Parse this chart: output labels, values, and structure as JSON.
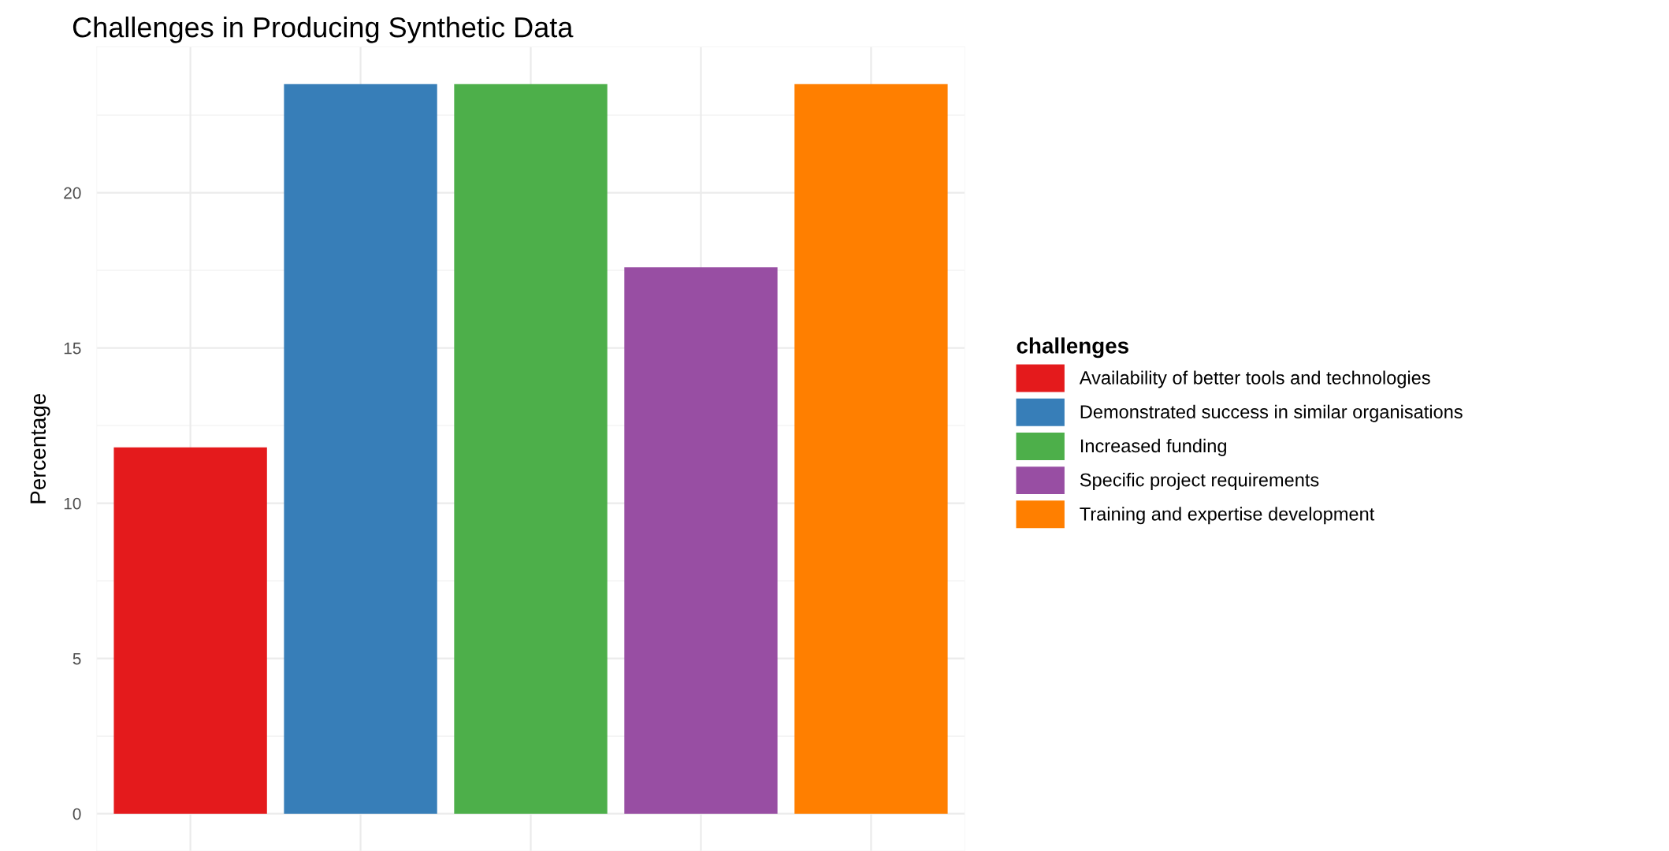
{
  "chart_data": {
    "type": "bar",
    "title": "Challenges in Producing Synthetic Data",
    "ylabel": "Percentage",
    "categories": [
      null,
      null,
      null,
      null,
      null
    ],
    "series": [
      {
        "name": "Availability of better tools and technologies",
        "color": "#e41a1c",
        "values": [
          11.8,
          null,
          null,
          null,
          null
        ]
      },
      {
        "name": "Demonstrated success in similar organisations",
        "color": "#377eb8",
        "values": [
          null,
          23.5,
          null,
          null,
          null
        ]
      },
      {
        "name": "Increased funding",
        "color": "#4daf4a",
        "values": [
          null,
          null,
          23.5,
          null,
          null
        ]
      },
      {
        "name": "Specific project requirements",
        "color": "#984ea3",
        "values": [
          null,
          null,
          null,
          17.6,
          null
        ]
      },
      {
        "name": "Training and expertise development",
        "color": "#ff7f00",
        "values": [
          null,
          null,
          null,
          null,
          23.5
        ]
      }
    ],
    "ylim": [
      -1.2,
      24.7
    ],
    "yticks": [
      0,
      5,
      10,
      15,
      20
    ],
    "grid": true,
    "tick_labels": "y",
    "legend": "right",
    "legend_title": "challenges"
  }
}
